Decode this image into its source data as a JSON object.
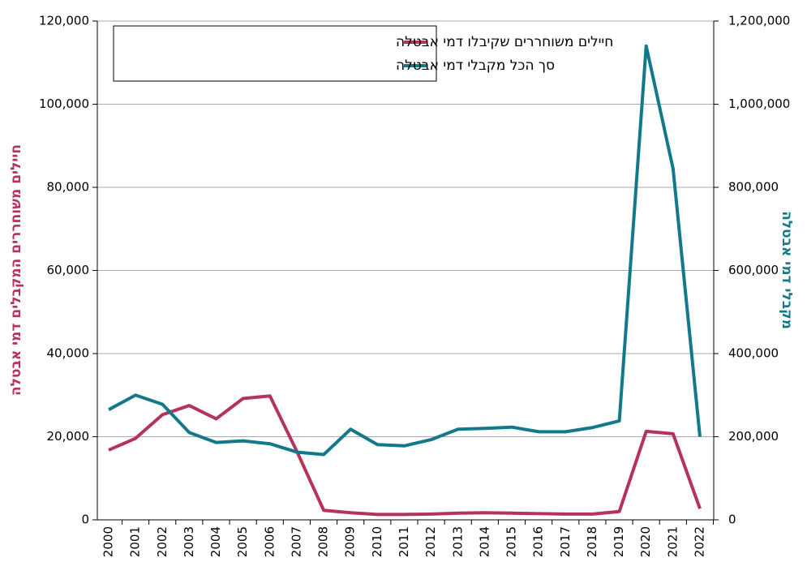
{
  "chart_data": {
    "type": "line",
    "categories": [
      "2000",
      "2001",
      "2002",
      "2003",
      "2004",
      "2005",
      "2006",
      "2007",
      "2008",
      "2009",
      "2010",
      "2011",
      "2012",
      "2013",
      "2014",
      "2015",
      "2016",
      "2017",
      "2018",
      "2019",
      "2020",
      "2021",
      "2022"
    ],
    "ylabel": "חיילים משוחררים המקבלים דמי אבטלה",
    "y2label": "מקבלי דמי אבטלה",
    "ylim": [
      0,
      120000
    ],
    "yticks": [
      0,
      {
        "value": 20000,
        "label": "20,000"
      },
      {
        "value": 40000,
        "label": "40,000"
      },
      {
        "value": 60000,
        "label": "60,000"
      },
      {
        "value": 80000,
        "label": "80,000"
      },
      {
        "value": 100000,
        "label": "100,000"
      },
      {
        "value": 120000,
        "label": "120,000"
      }
    ],
    "y2lim": [
      0,
      1200000
    ],
    "y2ticks": [
      0,
      {
        "value": 200000,
        "label": "200,000"
      },
      {
        "value": 400000,
        "label": "400,000"
      },
      {
        "value": 600000,
        "label": "600,000"
      },
      {
        "value": 800000,
        "label": "800,000"
      },
      {
        "value": 1000000,
        "label": "1,000,000"
      },
      {
        "value": 1200000,
        "label": "1,200,000"
      }
    ],
    "grid": true,
    "legend": "upper left",
    "series": [
      {
        "name": "חיילים משוחררים שקיבלו דמי אבטלה",
        "color": "#b5325a",
        "values": [
          16800,
          19600,
          25300,
          27500,
          24300,
          29200,
          29800,
          16500,
          2300,
          1700,
          1300,
          1300,
          1400,
          1600,
          1700,
          1600,
          1500,
          1400,
          1400,
          2000,
          21300,
          20700,
          2700
        ]
      },
      {
        "name": "סך הכל מקבלי דמי אבטלה",
        "color": "#13798a",
        "axis": "y2",
        "values": [
          265000,
          300000,
          278000,
          210000,
          186000,
          190000,
          183000,
          163000,
          157000,
          218000,
          181000,
          178000,
          193000,
          218000,
          220000,
          223000,
          212000,
          212000,
          222000,
          238000,
          1140000,
          845000,
          200000
        ]
      }
    ]
  }
}
